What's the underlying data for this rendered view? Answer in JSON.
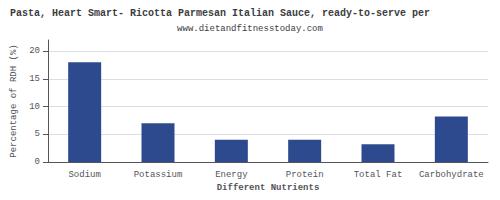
{
  "chart_data": {
    "type": "bar",
    "title": "Pasta, Heart Smart- Ricotta Parmesan Italian Sauce, ready-to-serve per",
    "subtitle": "www.dietandfitnesstoday.com",
    "xlabel": "Different Nutrients",
    "ylabel": "Percentage of RDH (%)",
    "categories": [
      "Sodium",
      "Potassium",
      "Energy",
      "Protein",
      "Total Fat",
      "Carbohydrate"
    ],
    "values": [
      18,
      7,
      4,
      4,
      3.2,
      8.2
    ],
    "color": "#2e4a8e",
    "ylim": [
      0,
      22
    ],
    "yticks": [
      0,
      5,
      10,
      15,
      20
    ],
    "grid": true
  }
}
